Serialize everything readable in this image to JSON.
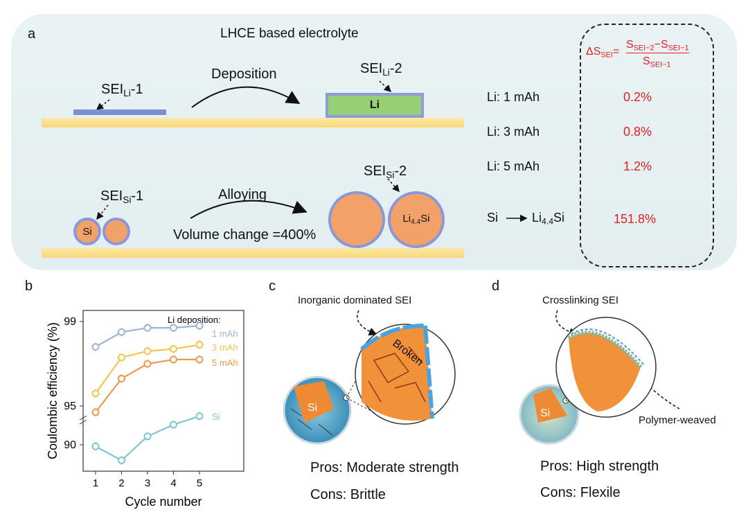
{
  "panel_a": {
    "label": "a",
    "title": "LHCE based electrolyte",
    "sei_li_1": {
      "base": "SEI",
      "sub": "Li",
      "suffix": "-1"
    },
    "sei_li_2": {
      "base": "SEI",
      "sub": "Li",
      "suffix": "-2"
    },
    "sei_si_1": {
      "base": "SEI",
      "sub": "Si",
      "suffix": "-1"
    },
    "sei_si_2": {
      "base": "SEI",
      "sub": "Si",
      "suffix": "-2"
    },
    "deposition": "Deposition",
    "alloying": "Alloying",
    "volume_change": "Volume change =400%",
    "li_block": "Li",
    "si_small": "Si",
    "li44si_particle": {
      "base": "Li",
      "sub": "4.4",
      "suffix": "Si"
    },
    "formula": {
      "delta": "ΔS",
      "delta_sub": "SEI",
      "eq": "=",
      "num_a": "S",
      "num_a_sub": "SEI−2",
      "minus": "−",
      "num_b": "S",
      "num_b_sub": "SEI−1",
      "den": "S",
      "den_sub": "SEI−1"
    },
    "rows": [
      {
        "label": "Li:  1 mAh",
        "value": "0.2%"
      },
      {
        "label": "Li:  3 mAh",
        "value": "0.8%"
      },
      {
        "label": "Li:  5 mAh",
        "value": "1.2%"
      }
    ],
    "si_row": {
      "left": "Si",
      "right_base": "Li",
      "right_sub": "4.4",
      "right_suffix": "Si",
      "value": "151.8%"
    },
    "colors": {
      "substrate": "#f8d77b",
      "sei": "#7e8ed4",
      "li": "#96cf75",
      "si": "#f2a168",
      "highlight": "#e02020"
    }
  },
  "panel_b": {
    "label": "b",
    "chart_data": {
      "type": "line",
      "x": [
        1,
        2,
        3,
        4,
        5
      ],
      "xlabel": "Cycle number",
      "ylabel": "Coulombic efficiency (%)",
      "xticks": [
        "1",
        "2",
        "3",
        "4",
        "5"
      ],
      "yticks": [
        "90",
        "95",
        "99"
      ],
      "legend_title": "Li deposition:",
      "series": [
        {
          "name": "1 mAh",
          "color": "#9fb3d9",
          "values": [
            97.8,
            98.5,
            98.7,
            98.7,
            98.8
          ]
        },
        {
          "name": "3 mAh",
          "color": "#f6c44f",
          "values": [
            95.6,
            97.3,
            97.6,
            97.7,
            97.9
          ]
        },
        {
          "name": "5 mAh",
          "color": "#ec9a4c",
          "values": [
            94.2,
            96.3,
            97.0,
            97.2,
            97.2
          ]
        },
        {
          "name": "Si",
          "color": "#7fc4d6",
          "values": [
            89.8,
            88.0,
            91.1,
            92.6,
            93.7
          ]
        }
      ]
    }
  },
  "panel_c": {
    "label": "c",
    "sei_label": "Inorganic dominated SEI",
    "broken": "Broken",
    "core": "Si",
    "pros": "Pros: Moderate strength",
    "cons": "Cons: Brittle"
  },
  "panel_d": {
    "label": "d",
    "sei_label": "Crosslinking SEI",
    "polymer": "Polymer-weaved",
    "core": "Si",
    "pros": "Pros: High strength",
    "cons": "Cons: Flexile"
  }
}
